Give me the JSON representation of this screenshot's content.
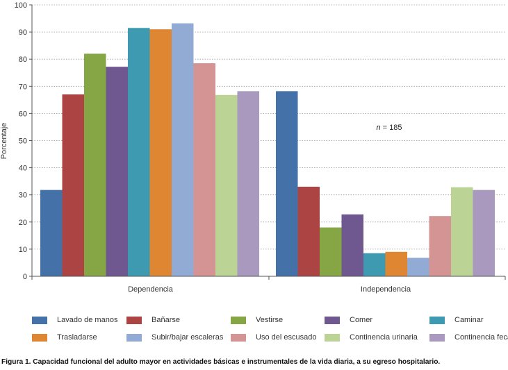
{
  "chart_data": {
    "type": "bar",
    "title": "",
    "xlabel": "",
    "ylabel": "Porcentaje",
    "ylim": [
      0,
      100
    ],
    "yticks": [
      0,
      10,
      20,
      30,
      40,
      50,
      60,
      70,
      80,
      90,
      100
    ],
    "grid": true,
    "legend_position": "bottom",
    "categories": [
      "Dependencia",
      "Independencia"
    ],
    "series": [
      {
        "name": "Lavado de manos",
        "color": "#4472a8",
        "values": [
          31.8,
          68.2
        ]
      },
      {
        "name": "Bañarse",
        "color": "#ac4444",
        "values": [
          67.0,
          33.0
        ]
      },
      {
        "name": "Vestirse",
        "color": "#86a646",
        "values": [
          82.0,
          18.0
        ]
      },
      {
        "name": "Comer",
        "color": "#6f578f",
        "values": [
          77.2,
          22.8
        ]
      },
      {
        "name": "Caminar",
        "color": "#3e9ab1",
        "values": [
          91.5,
          8.5
        ]
      },
      {
        "name": "Trasladarse",
        "color": "#df8633",
        "values": [
          91.0,
          9.0
        ]
      },
      {
        "name": "Subir/bajar escaleras",
        "color": "#92abd4",
        "values": [
          93.2,
          6.8
        ]
      },
      {
        "name": "Uso del escusado",
        "color": "#d59494",
        "values": [
          78.5,
          22.2
        ]
      },
      {
        "name": "Continencia urinaria",
        "color": "#bcd396",
        "values": [
          66.8,
          32.8
        ]
      },
      {
        "name": "Continencia fecal",
        "color": "#a999be",
        "values": [
          68.2,
          31.8
        ]
      }
    ],
    "annotation": {
      "italic": "n",
      "text": " = 185"
    }
  },
  "caption": "Figura 1. Capacidad funcional del adulto mayor en actividades básicas e instrumentales de la vida diaria, a su egreso hospitalario."
}
